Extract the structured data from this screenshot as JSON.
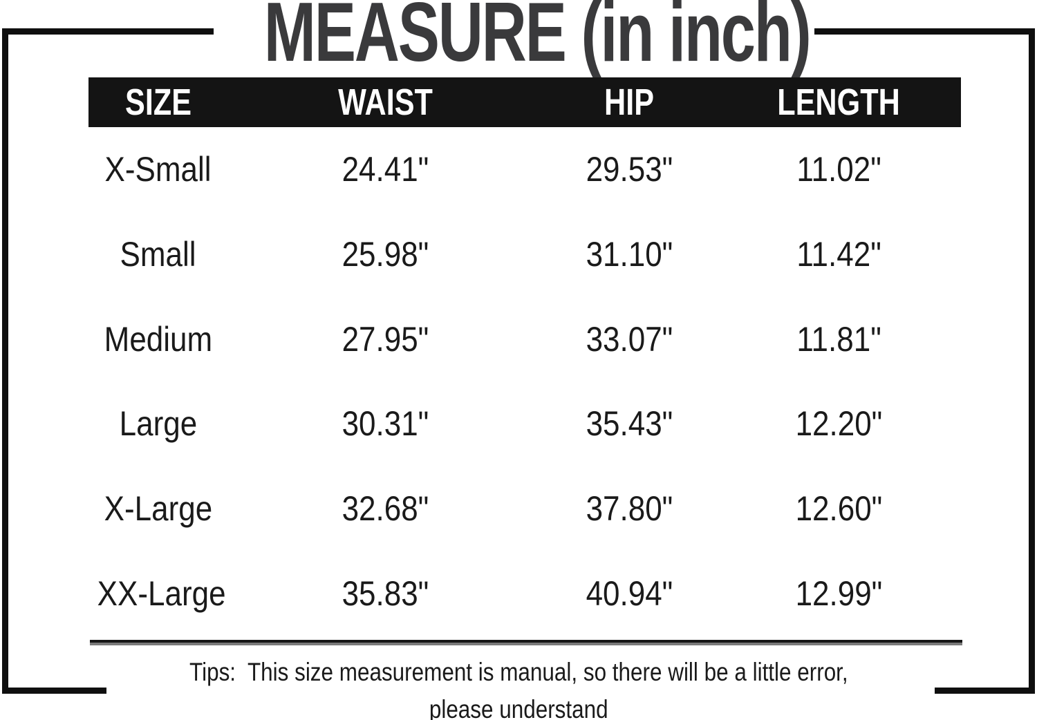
{
  "chart_data": {
    "type": "table",
    "title": "MEASURE (in inch)",
    "columns": [
      "SIZE",
      "WAIST",
      "HIP",
      "LENGTH"
    ],
    "rows": [
      [
        "X-Small",
        "24.41\"",
        "29.53\"",
        "11.02\""
      ],
      [
        "Small",
        "25.98\"",
        "31.10\"",
        "11.42\""
      ],
      [
        "Medium",
        "27.95\"",
        "33.07\"",
        "11.81\""
      ],
      [
        "Large",
        "30.31\"",
        "35.43\"",
        "12.20\""
      ],
      [
        "X-Large",
        "32.68\"",
        "37.80\"",
        "12.60\""
      ],
      [
        "XX-Large",
        "35.83\"",
        "40.94\"",
        "12.99\""
      ]
    ],
    "layout": {
      "header_position": "top",
      "grid": "off"
    }
  },
  "tips": {
    "line1": "Tips:  This size measurement is manual, so there will be a little error,",
    "line2": "please understand"
  },
  "colors": {
    "title_text": "#3a3a3c",
    "header_bg": "#141414",
    "header_text": "#ffffff",
    "body_text": "#1a1a1a",
    "frame": "#0f0f0f",
    "separator_shadow": "#7a7a7a",
    "background": "#ffffff"
  }
}
